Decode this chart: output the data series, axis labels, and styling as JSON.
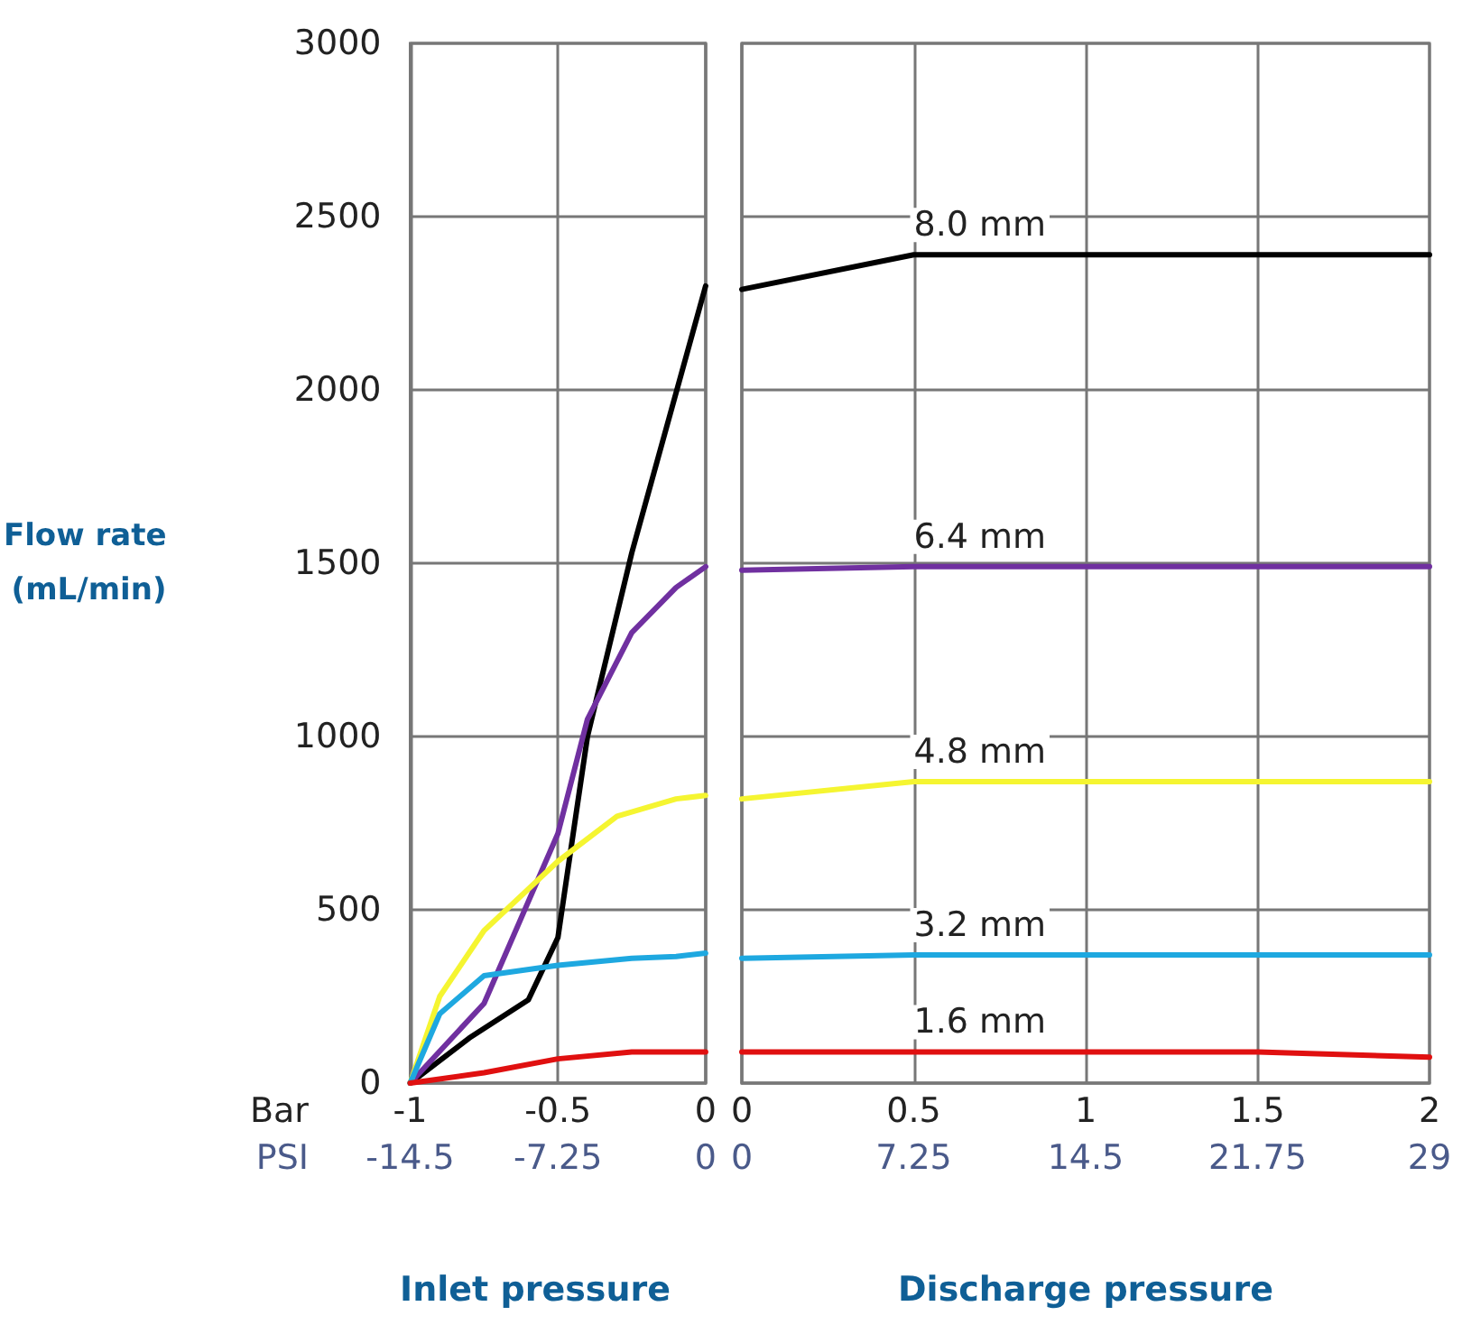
{
  "chart_data": [
    {
      "type": "line",
      "ylabel": "Flow rate (mL/min)",
      "xlabel": "Inlet pressure",
      "x2label": "PSI",
      "annotations": [
        "Bar"
      ],
      "xlim": [
        -1,
        0
      ],
      "xticks": [
        -1,
        -0.5,
        0
      ],
      "x2lim": [
        -14.5,
        0
      ],
      "x2ticks": [
        -14.5,
        -7.25,
        0
      ],
      "ylim": [
        0,
        3000
      ],
      "yticks": [
        0,
        500,
        1000,
        1500,
        2000,
        2500,
        3000
      ],
      "grid": true,
      "marker": "none",
      "line_style": "solid",
      "series": [
        {
          "color": "#000000",
          "x": [
            -1,
            -0.8,
            -0.6,
            -0.5,
            -0.4,
            -0.25,
            0
          ],
          "values": [
            0,
            130,
            240,
            420,
            1000,
            1530,
            2300
          ]
        },
        {
          "color": "#7030a0",
          "x": [
            -1,
            -0.75,
            -0.5,
            -0.4,
            -0.25,
            -0.1,
            0
          ],
          "values": [
            0,
            230,
            720,
            1050,
            1300,
            1430,
            1490
          ]
        },
        {
          "color": "#f5f531",
          "x": [
            -1,
            -0.9,
            -0.75,
            -0.5,
            -0.3,
            -0.1,
            0
          ],
          "values": [
            0,
            250,
            440,
            640,
            770,
            820,
            830
          ]
        },
        {
          "color": "#1ea8e0",
          "x": [
            -1,
            -0.9,
            -0.75,
            -0.5,
            -0.25,
            -0.1,
            0
          ],
          "values": [
            0,
            200,
            310,
            340,
            360,
            365,
            375
          ]
        },
        {
          "color": "#e01010",
          "x": [
            -1,
            -0.75,
            -0.5,
            -0.25,
            0
          ],
          "values": [
            0,
            30,
            70,
            90,
            90
          ]
        }
      ]
    },
    {
      "type": "line",
      "xlabel": "Discharge pressure",
      "xlim": [
        0,
        2
      ],
      "xticks": [
        0,
        0.5,
        1,
        1.5,
        2
      ],
      "x2lim": [
        0,
        29
      ],
      "x2ticks": [
        0,
        7.25,
        14.5,
        21.75,
        29
      ],
      "ylim": [
        0,
        3000
      ],
      "yticks": [
        0,
        500,
        1000,
        1500,
        2000,
        2500,
        3000
      ],
      "tick_labels": "x",
      "grid": true,
      "marker": "none",
      "line_style": "solid",
      "series": [
        {
          "name": "8.0 mm",
          "color": "#000000",
          "x": [
            0,
            0.5,
            2
          ],
          "values": [
            2290,
            2390,
            2390
          ]
        },
        {
          "name": "6.4 mm",
          "color": "#7030a0",
          "x": [
            0,
            0.5,
            2
          ],
          "values": [
            1480,
            1490,
            1490
          ]
        },
        {
          "name": "4.8 mm",
          "color": "#f5f531",
          "x": [
            0,
            0.5,
            2
          ],
          "values": [
            820,
            870,
            870
          ]
        },
        {
          "name": "3.2 mm",
          "color": "#1ea8e0",
          "x": [
            0,
            0.5,
            2
          ],
          "values": [
            360,
            370,
            370
          ]
        },
        {
          "name": "1.6 mm",
          "color": "#e01010",
          "x": [
            0,
            0.5,
            1.5,
            2
          ],
          "values": [
            90,
            90,
            90,
            75
          ]
        }
      ]
    }
  ]
}
